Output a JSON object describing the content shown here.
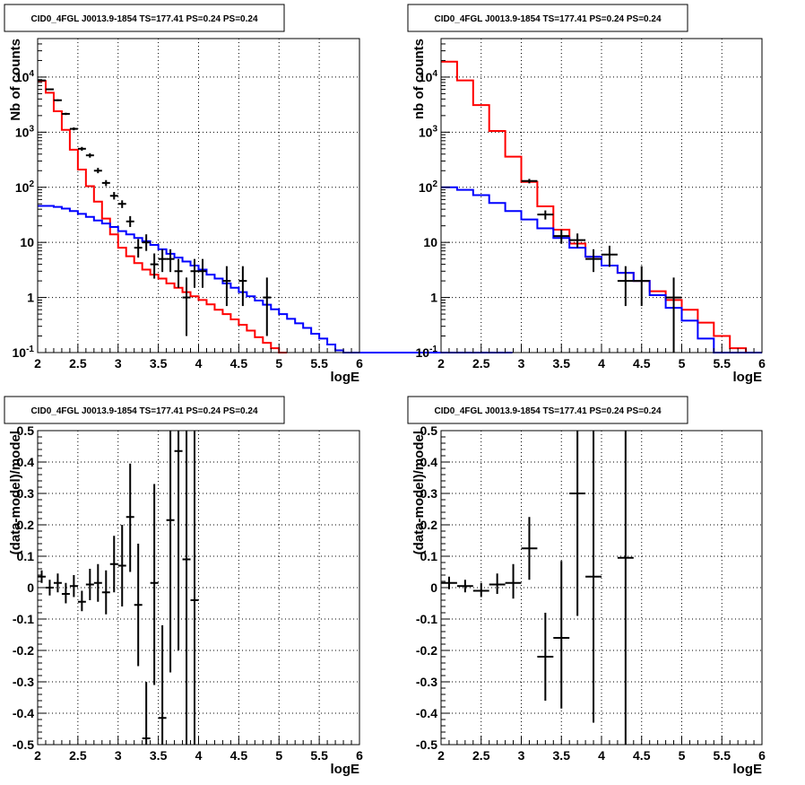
{
  "colors": {
    "model": "#ff0000",
    "background": "#0000ff",
    "data": "#000000",
    "grid": "#000000"
  },
  "chart_data": [
    {
      "type": "line",
      "title": "CID0_4FGL J0013.9-1854 TS=177.41 PS=0.24 PS=0.24",
      "xlabel": "logE",
      "ylabel": "Nb of counts",
      "xlim": [
        2,
        6
      ],
      "ylim": [
        0.1,
        50000
      ],
      "log_y": true,
      "grid": true,
      "x_ticks": [
        "2",
        "2.5",
        "3",
        "3.5",
        "4",
        "4.5",
        "5",
        "5.5",
        "6"
      ],
      "y_ticks": [
        "10^{-1}",
        "1",
        "10",
        "10^{2}",
        "10^{3}",
        "10^{4}"
      ],
      "series": [
        {
          "kind": "step",
          "color": "#ff0000",
          "bin_width": 0.1,
          "x_start": 2.0,
          "values": [
            8500,
            5200,
            2400,
            1100,
            480,
            210,
            105,
            55,
            27,
            14,
            8,
            5.6,
            4.2,
            3.2,
            2.6,
            2.2,
            1.8,
            1.5,
            1.25,
            1.05,
            0.9,
            0.75,
            0.6,
            0.5,
            0.4,
            0.32,
            0.25,
            0.19,
            0.15,
            0.12,
            0.1
          ]
        },
        {
          "kind": "step",
          "color": "#0000ff",
          "bin_width": 0.1,
          "x_start": 2.0,
          "values": [
            46,
            46,
            44,
            41,
            37,
            33,
            29,
            25,
            22,
            19,
            16,
            14,
            12,
            10.5,
            9,
            7.5,
            6.2,
            5.3,
            4.5,
            3.8,
            3.2,
            2.6,
            2.2,
            1.8,
            1.5,
            1.25,
            1.05,
            0.88,
            0.74,
            0.61,
            0.5,
            0.41,
            0.34,
            0.28,
            0.22,
            0.18,
            0.14,
            0.11,
            0.1,
            0.1,
            0.1,
            0.1,
            0.1,
            0.1,
            0.1,
            0.1,
            0.1,
            0.1,
            0.1,
            0.1,
            0.1,
            0.1,
            0.1,
            0.1,
            0.1,
            0.1,
            0.1,
            0.1,
            0.1,
            0.1
          ]
        }
      ],
      "points": [
        {
          "x": 2.05,
          "y": 8700,
          "lo": 8500,
          "hi": 8900
        },
        {
          "x": 2.15,
          "y": 6000,
          "lo": 5850,
          "hi": 6150
        },
        {
          "x": 2.25,
          "y": 3800,
          "lo": 3650,
          "hi": 3950
        },
        {
          "x": 2.35,
          "y": 2150,
          "lo": 2050,
          "hi": 2250
        },
        {
          "x": 2.45,
          "y": 1150,
          "lo": 1080,
          "hi": 1220
        },
        {
          "x": 2.55,
          "y": 500,
          "lo": 460,
          "hi": 540
        },
        {
          "x": 2.65,
          "y": 380,
          "lo": 345,
          "hi": 415
        },
        {
          "x": 2.75,
          "y": 200,
          "lo": 180,
          "hi": 225
        },
        {
          "x": 2.85,
          "y": 120,
          "lo": 105,
          "hi": 135
        },
        {
          "x": 2.95,
          "y": 70,
          "lo": 60,
          "hi": 82
        },
        {
          "x": 3.05,
          "y": 50,
          "lo": 42,
          "hi": 58
        },
        {
          "x": 3.15,
          "y": 24,
          "lo": 19,
          "hi": 30
        },
        {
          "x": 3.25,
          "y": 8,
          "lo": 5.3,
          "hi": 11.5
        },
        {
          "x": 3.35,
          "y": 10,
          "lo": 7,
          "hi": 14
        },
        {
          "x": 3.45,
          "y": 4,
          "lo": 2.2,
          "hi": 6.3
        },
        {
          "x": 3.55,
          "y": 5,
          "lo": 2.9,
          "hi": 7.5
        },
        {
          "x": 3.65,
          "y": 5,
          "lo": 2.9,
          "hi": 7.5
        },
        {
          "x": 3.75,
          "y": 3,
          "lo": 1.5,
          "hi": 5
        },
        {
          "x": 3.85,
          "y": 1,
          "lo": 0.2,
          "hi": 2.3
        },
        {
          "x": 3.95,
          "y": 3,
          "lo": 1.5,
          "hi": 5
        },
        {
          "x": 4.05,
          "y": 3,
          "lo": 1.5,
          "hi": 5
        },
        {
          "x": 4.35,
          "y": 2,
          "lo": 0.7,
          "hi": 3.7
        },
        {
          "x": 4.55,
          "y": 2,
          "lo": 0.7,
          "hi": 3.7
        },
        {
          "x": 4.85,
          "y": 1,
          "lo": 0.2,
          "hi": 2.3
        }
      ],
      "xerr": 0.05
    },
    {
      "type": "line",
      "title": "CID0_4FGL J0013.9-1854 TS=177.41 PS=0.24 PS=0.24",
      "xlabel": "logE",
      "ylabel": "nb of counts",
      "xlim": [
        2,
        6
      ],
      "ylim": [
        0.1,
        50000
      ],
      "log_y": true,
      "grid": true,
      "x_ticks": [
        "2",
        "2.5",
        "3",
        "3.5",
        "4",
        "4.5",
        "5",
        "5.5",
        "6"
      ],
      "y_ticks": [
        "10^{-1}",
        "1",
        "10",
        "10^{2}",
        "10^{3}",
        "10^{4}"
      ],
      "series": [
        {
          "kind": "step",
          "color": "#ff0000",
          "bin_width": 0.2,
          "x_start": 2.0,
          "values": [
            19000,
            8700,
            3100,
            1050,
            360,
            125,
            45,
            17,
            9.5,
            5.5,
            3.8,
            2.8,
            2.0,
            1.3,
            0.9,
            0.6,
            0.35,
            0.2,
            0.12,
            0.1
          ]
        },
        {
          "kind": "step",
          "color": "#0000ff",
          "bin_width": 0.2,
          "x_start": 2.0,
          "values": [
            100,
            90,
            72,
            52,
            37,
            26,
            18,
            12,
            8,
            5.5,
            3.8,
            2.8,
            2.0,
            1.1,
            0.65,
            0.38,
            0.18,
            0.1,
            0.1,
            0.1
          ]
        }
      ],
      "points": [
        {
          "x": 3.1,
          "y": 130,
          "lo": 118,
          "hi": 142
        },
        {
          "x": 3.3,
          "y": 32,
          "lo": 26,
          "hi": 38
        },
        {
          "x": 3.5,
          "y": 13,
          "lo": 9.5,
          "hi": 17
        },
        {
          "x": 3.7,
          "y": 11,
          "lo": 8,
          "hi": 14.5
        },
        {
          "x": 3.9,
          "y": 5,
          "lo": 2.9,
          "hi": 7.5
        },
        {
          "x": 4.1,
          "y": 6,
          "lo": 3.6,
          "hi": 8.7
        },
        {
          "x": 4.3,
          "y": 2,
          "lo": 0.7,
          "hi": 3.7
        },
        {
          "x": 4.5,
          "y": 2,
          "lo": 0.7,
          "hi": 3.7
        },
        {
          "x": 4.9,
          "y": 1,
          "lo": 0.1,
          "hi": 2.3
        }
      ],
      "xerr": 0.1
    },
    {
      "type": "scatter",
      "title": "CID0_4FGL J0013.9-1854 TS=177.41 PS=0.24 PS=0.24",
      "xlabel": "logE",
      "ylabel": "(data-model)/model",
      "xlim": [
        2,
        6
      ],
      "ylim": [
        -0.5,
        0.5
      ],
      "log_y": false,
      "grid": true,
      "x_ticks": [
        "2",
        "2.5",
        "3",
        "3.5",
        "4",
        "4.5",
        "5",
        "5.5",
        "6"
      ],
      "y_ticks": [
        "-0.5",
        "-0.4",
        "-0.3",
        "-0.2",
        "-0.1",
        "0",
        "0.1",
        "0.2",
        "0.3",
        "0.4",
        "0.5"
      ],
      "points": [
        {
          "x": 2.05,
          "y": 0.035,
          "lo": 0.015,
          "hi": 0.055
        },
        {
          "x": 2.15,
          "y": 0.0,
          "lo": -0.025,
          "hi": 0.025
        },
        {
          "x": 2.25,
          "y": 0.015,
          "lo": -0.015,
          "hi": 0.045
        },
        {
          "x": 2.35,
          "y": -0.02,
          "lo": -0.05,
          "hi": 0.015
        },
        {
          "x": 2.45,
          "y": 0.005,
          "lo": -0.03,
          "hi": 0.04
        },
        {
          "x": 2.55,
          "y": -0.045,
          "lo": -0.075,
          "hi": -0.01
        },
        {
          "x": 2.65,
          "y": 0.01,
          "lo": -0.04,
          "hi": 0.06
        },
        {
          "x": 2.75,
          "y": 0.015,
          "lo": -0.045,
          "hi": 0.075
        },
        {
          "x": 2.85,
          "y": -0.015,
          "lo": -0.085,
          "hi": 0.055
        },
        {
          "x": 2.95,
          "y": 0.075,
          "lo": -0.015,
          "hi": 0.165
        },
        {
          "x": 3.05,
          "y": 0.07,
          "lo": -0.06,
          "hi": 0.2
        },
        {
          "x": 3.15,
          "y": 0.225,
          "lo": 0.05,
          "hi": 0.395
        },
        {
          "x": 3.25,
          "y": -0.055,
          "lo": -0.25,
          "hi": 0.14
        },
        {
          "x": 3.35,
          "y": -0.48,
          "lo": -0.5,
          "hi": -0.3
        },
        {
          "x": 3.45,
          "y": 0.015,
          "lo": -0.31,
          "hi": 0.33
        },
        {
          "x": 3.55,
          "y": -0.415,
          "lo": -0.5,
          "hi": -0.12
        },
        {
          "x": 3.65,
          "y": 0.215,
          "lo": -0.27,
          "hi": 0.5
        },
        {
          "x": 3.75,
          "y": 0.435,
          "lo": -0.2,
          "hi": 0.5
        },
        {
          "x": 3.85,
          "y": 0.09,
          "lo": -0.5,
          "hi": 0.5
        },
        {
          "x": 3.95,
          "y": -0.04,
          "lo": -0.5,
          "hi": 0.5
        }
      ],
      "xerr": 0.05
    },
    {
      "type": "scatter",
      "title": "CID0_4FGL J0013.9-1854 TS=177.41 PS=0.24 PS=0.24",
      "xlabel": "logE",
      "ylabel": "(data-model)/model",
      "xlim": [
        2,
        6
      ],
      "ylim": [
        -0.5,
        0.5
      ],
      "log_y": false,
      "grid": true,
      "x_ticks": [
        "2",
        "2.5",
        "3",
        "3.5",
        "4",
        "4.5",
        "5",
        "5.5",
        "6"
      ],
      "y_ticks": [
        "-0.5",
        "-0.4",
        "-0.3",
        "-0.2",
        "-0.1",
        "0",
        "0.1",
        "0.2",
        "0.3",
        "0.4",
        "0.5"
      ],
      "points": [
        {
          "x": 2.1,
          "y": 0.015,
          "lo": -0.005,
          "hi": 0.035
        },
        {
          "x": 2.3,
          "y": 0.005,
          "lo": -0.015,
          "hi": 0.025
        },
        {
          "x": 2.5,
          "y": -0.01,
          "lo": -0.03,
          "hi": 0.015
        },
        {
          "x": 2.7,
          "y": 0.01,
          "lo": -0.02,
          "hi": 0.045
        },
        {
          "x": 2.9,
          "y": 0.015,
          "lo": -0.035,
          "hi": 0.075
        },
        {
          "x": 3.1,
          "y": 0.125,
          "lo": 0.025,
          "hi": 0.225
        },
        {
          "x": 3.3,
          "y": -0.22,
          "lo": -0.36,
          "hi": -0.08
        },
        {
          "x": 3.5,
          "y": -0.16,
          "lo": -0.385,
          "hi": 0.085
        },
        {
          "x": 3.7,
          "y": 0.3,
          "lo": -0.09,
          "hi": 0.5
        },
        {
          "x": 3.9,
          "y": 0.035,
          "lo": -0.43,
          "hi": 0.5
        },
        {
          "x": 4.3,
          "y": 0.095,
          "lo": -0.5,
          "hi": 0.5
        }
      ],
      "xerr": 0.1
    }
  ]
}
